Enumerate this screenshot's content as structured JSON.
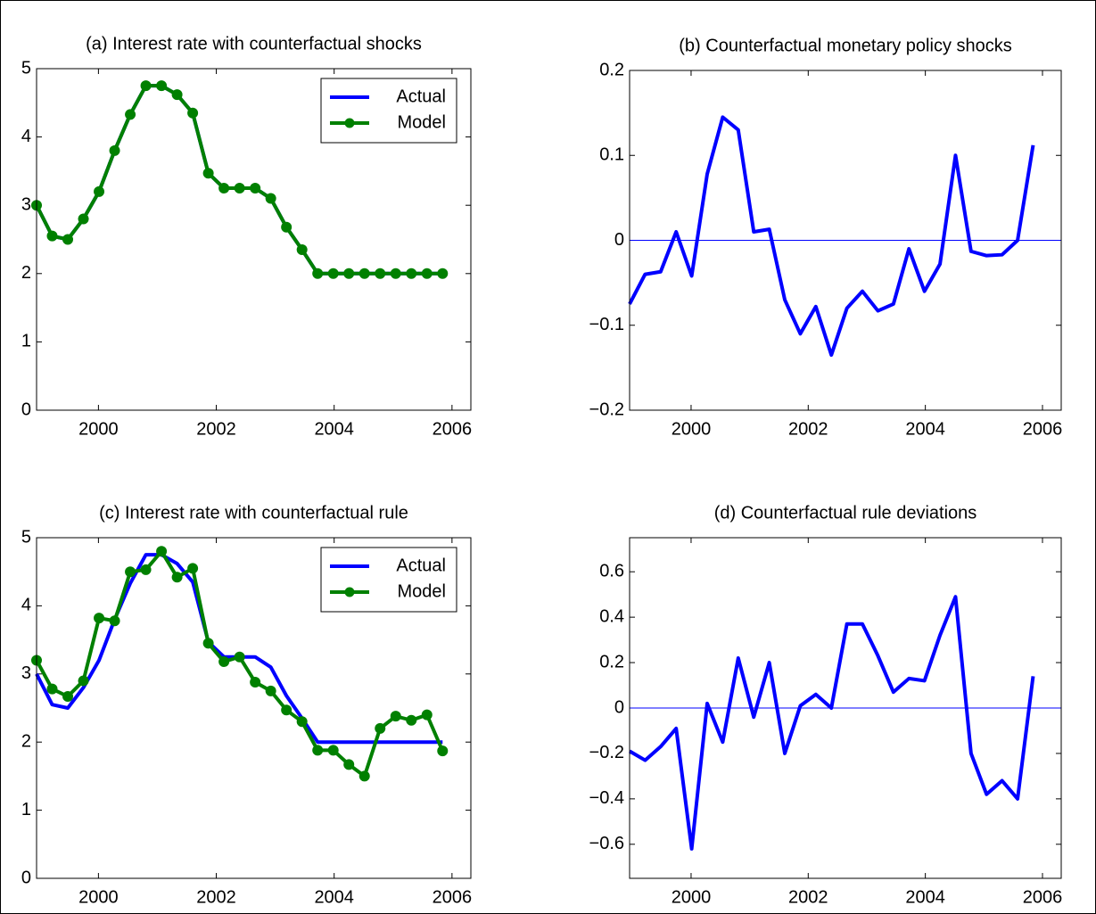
{
  "chart_data": [
    {
      "type": "line",
      "title": "(a) Interest rate with counterfactual shocks",
      "x": [
        1998.95,
        1999.215,
        1999.48,
        1999.745,
        2000.01,
        2000.275,
        2000.54,
        2000.805,
        2001.07,
        2001.335,
        2001.6,
        2001.865,
        2002.13,
        2002.395,
        2002.66,
        2002.925,
        2003.19,
        2003.455,
        2003.72,
        2003.985,
        2004.25,
        2004.515,
        2004.78,
        2005.045,
        2005.31,
        2005.575,
        2005.84
      ],
      "series": [
        {
          "name": "Actual",
          "color": "#0000ff",
          "values": [
            3.0,
            2.55,
            2.5,
            2.8,
            3.2,
            3.8,
            4.33,
            4.75,
            4.75,
            4.62,
            4.35,
            3.47,
            3.25,
            3.25,
            3.25,
            3.1,
            2.68,
            2.35,
            2.0,
            2.0,
            2.0,
            2.0,
            2.0,
            2.0,
            2.0,
            2.0,
            2.0
          ]
        },
        {
          "name": "Model",
          "color": "#008000",
          "marker": "o",
          "values": [
            3.0,
            2.55,
            2.5,
            2.8,
            3.2,
            3.8,
            4.33,
            4.75,
            4.75,
            4.62,
            4.35,
            3.47,
            3.25,
            3.25,
            3.25,
            3.1,
            2.68,
            2.35,
            2.0,
            2.0,
            2.0,
            2.0,
            2.0,
            2.0,
            2.0,
            2.0,
            2.0
          ]
        }
      ],
      "xlim": [
        1998.95,
        2006.32
      ],
      "xticks": [
        2000,
        2002,
        2004,
        2006
      ],
      "ylim": [
        0,
        5
      ],
      "yticks": [
        0,
        1,
        2,
        3,
        4,
        5
      ],
      "legend": "upper right"
    },
    {
      "type": "line",
      "title": "(b) Counterfactual monetary policy shocks",
      "x": [
        1998.95,
        1999.215,
        1999.48,
        1999.745,
        2000.01,
        2000.275,
        2000.54,
        2000.805,
        2001.07,
        2001.335,
        2001.6,
        2001.865,
        2002.13,
        2002.395,
        2002.66,
        2002.925,
        2003.19,
        2003.455,
        2003.72,
        2003.985,
        2004.25,
        2004.515,
        2004.78,
        2005.045,
        2005.31,
        2005.575,
        2005.84
      ],
      "series": [
        {
          "color": "#0000ff",
          "values": [
            -0.075,
            -0.04,
            -0.037,
            0.01,
            -0.042,
            0.078,
            0.145,
            0.13,
            0.01,
            0.013,
            -0.07,
            -0.11,
            -0.078,
            -0.135,
            -0.08,
            -0.06,
            -0.083,
            -0.075,
            -0.01,
            -0.06,
            -0.028,
            0.1,
            -0.013,
            -0.018,
            -0.017,
            0,
            0.112
          ]
        }
      ],
      "xlim": [
        1998.95,
        2006.32
      ],
      "xticks": [
        2000,
        2002,
        2004,
        2006
      ],
      "ylim": [
        -0.2,
        0.2
      ],
      "yticks": [
        {
          "value": -0.2,
          "label": "−0.2"
        },
        {
          "value": -0.1,
          "label": "−0.1"
        },
        0,
        0.1,
        0.2
      ],
      "zero_line": true
    },
    {
      "type": "line",
      "title": "(c) Interest rate with counterfactual rule",
      "x": [
        1998.95,
        1999.215,
        1999.48,
        1999.745,
        2000.01,
        2000.275,
        2000.54,
        2000.805,
        2001.07,
        2001.335,
        2001.6,
        2001.865,
        2002.13,
        2002.395,
        2002.66,
        2002.925,
        2003.19,
        2003.455,
        2003.72,
        2003.985,
        2004.25,
        2004.515,
        2004.78,
        2005.045,
        2005.31,
        2005.575,
        2005.84
      ],
      "series": [
        {
          "name": "Actual",
          "color": "#0000ff",
          "values": [
            3.0,
            2.55,
            2.5,
            2.8,
            3.2,
            3.8,
            4.33,
            4.75,
            4.75,
            4.62,
            4.35,
            3.47,
            3.25,
            3.25,
            3.25,
            3.1,
            2.68,
            2.35,
            2.0,
            2.0,
            2.0,
            2.0,
            2.0,
            2.0,
            2.0,
            2.0,
            2.0
          ]
        },
        {
          "name": "Model",
          "color": "#008000",
          "marker": "o",
          "values": [
            3.2,
            2.78,
            2.67,
            2.9,
            3.82,
            3.78,
            4.5,
            4.53,
            4.8,
            4.42,
            4.55,
            3.45,
            3.18,
            3.25,
            2.88,
            2.75,
            2.47,
            2.3,
            1.88,
            1.88,
            1.67,
            1.5,
            2.2,
            2.38,
            2.32,
            2.4,
            1.87
          ]
        }
      ],
      "xlim": [
        1998.95,
        2006.32
      ],
      "xticks": [
        2000,
        2002,
        2004,
        2006
      ],
      "ylim": [
        0,
        5
      ],
      "yticks": [
        0,
        1,
        2,
        3,
        4,
        5
      ],
      "legend": "upper right"
    },
    {
      "type": "line",
      "title": "(d) Counterfactual rule deviations",
      "x": [
        1998.95,
        1999.215,
        1999.48,
        1999.745,
        2000.01,
        2000.275,
        2000.54,
        2000.805,
        2001.07,
        2001.335,
        2001.6,
        2001.865,
        2002.13,
        2002.395,
        2002.66,
        2002.925,
        2003.19,
        2003.455,
        2003.72,
        2003.985,
        2004.25,
        2004.515,
        2004.78,
        2005.045,
        2005.31,
        2005.575,
        2005.84
      ],
      "series": [
        {
          "color": "#0000ff",
          "values": [
            -0.19,
            -0.23,
            -0.17,
            -0.09,
            -0.62,
            0.02,
            -0.15,
            0.22,
            -0.04,
            0.2,
            -0.2,
            0.01,
            0.06,
            0.0,
            0.37,
            0.37,
            0.23,
            0.07,
            0.13,
            0.12,
            0.32,
            0.49,
            -0.2,
            -0.38,
            -0.32,
            -0.4,
            0.14
          ]
        }
      ],
      "xlim": [
        1998.95,
        2006.32
      ],
      "xticks": [
        2000,
        2002,
        2004,
        2006
      ],
      "ylim": [
        -0.75,
        0.75
      ],
      "yticks": [
        {
          "value": -0.6,
          "label": "−0.6"
        },
        {
          "value": -0.4,
          "label": "−0.4"
        },
        {
          "value": -0.2,
          "label": "−0.2"
        },
        0,
        0.2,
        0.4,
        0.6
      ],
      "zero_line": true
    }
  ]
}
